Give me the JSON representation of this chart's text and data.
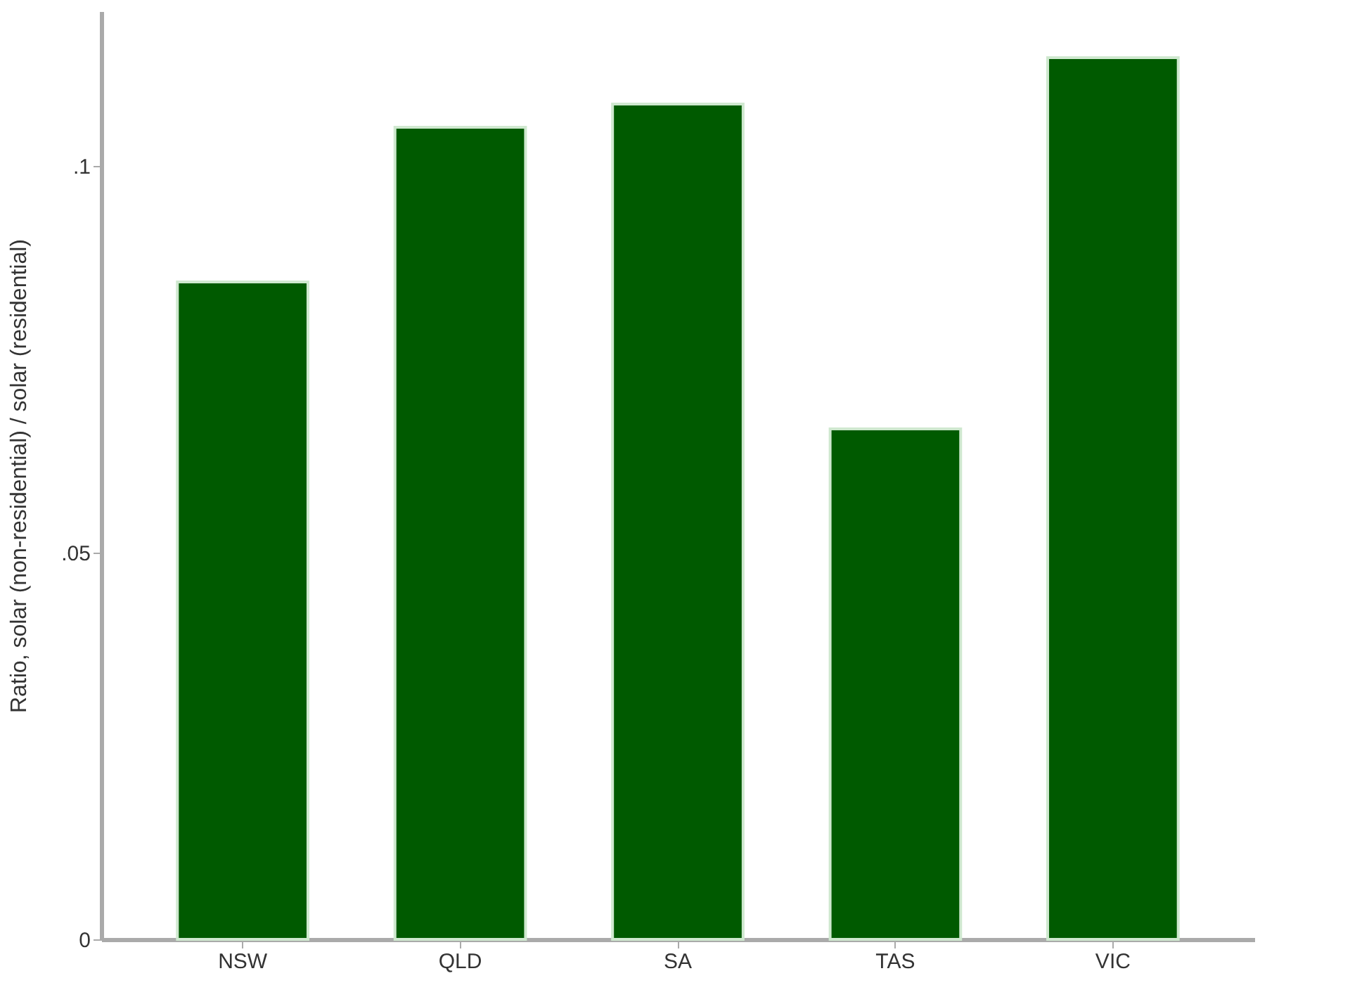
{
  "chart_data": {
    "type": "bar",
    "ylabel": "Ratio, solar (non-residential) / solar (residential)",
    "categories": [
      "NSW",
      "QLD",
      "SA",
      "TAS",
      "VIC"
    ],
    "values": [
      0.085,
      0.105,
      0.108,
      0.066,
      0.114
    ],
    "color": "#005a00",
    "ylim": [
      0,
      0.12
    ],
    "yticks": [
      {
        "value": 0,
        "label": "0"
      },
      {
        "value": 0.05,
        "label": ".05"
      },
      {
        "value": 0.1,
        "label": ".1"
      }
    ],
    "grid": false
  }
}
